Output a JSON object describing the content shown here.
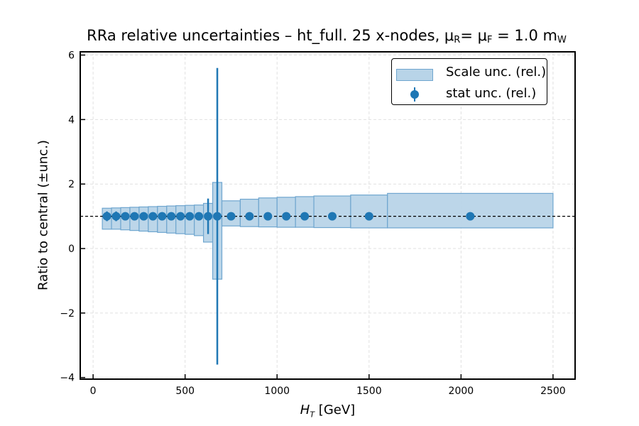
{
  "chart_data": {
    "type": "scatter",
    "title": "RRa relative uncertainties  –  ht_full. 25 x-nodes, μ",
    "title_parts": {
      "mu_r_sub": "R",
      "mid": "= μ",
      "mu_f_sub": "F",
      "tail": " = 1.0 m",
      "w_sub": "W"
    },
    "xlabel": {
      "var": "H",
      "sub": "T",
      "unit": " [GeV]"
    },
    "ylabel": "Ratio to central (±unc.)",
    "xlim": [
      -70,
      2620
    ],
    "ylim": [
      -4.05,
      6.1
    ],
    "xticks": [
      0,
      500,
      1000,
      1500,
      2000,
      2500
    ],
    "yticks": [
      -4,
      -2,
      0,
      2,
      4,
      6
    ],
    "ytick_labels": [
      "−4",
      "−2",
      "0",
      "2",
      "4",
      "6"
    ],
    "grid": true,
    "reference_line": 1.0,
    "legend": {
      "placement": "top-right",
      "entries": [
        "Scale unc. (rel.)",
        "stat unc. (rel.)"
      ]
    },
    "colors": {
      "band_fill": "#b8d4e8",
      "band_edge": "#6fa6cf",
      "point": "#1f77b4",
      "grid": "#e0e0e0"
    },
    "series": [
      {
        "name": "Scale unc. (rel.)",
        "kind": "band",
        "bins": [
          {
            "x0": 50,
            "x1": 100,
            "lo": 0.6,
            "hi": 1.25
          },
          {
            "x0": 100,
            "x1": 150,
            "lo": 0.6,
            "hi": 1.26
          },
          {
            "x0": 150,
            "x1": 200,
            "lo": 0.58,
            "hi": 1.27
          },
          {
            "x0": 200,
            "x1": 250,
            "lo": 0.56,
            "hi": 1.28
          },
          {
            "x0": 250,
            "x1": 300,
            "lo": 0.54,
            "hi": 1.29
          },
          {
            "x0": 300,
            "x1": 350,
            "lo": 0.52,
            "hi": 1.3
          },
          {
            "x0": 350,
            "x1": 400,
            "lo": 0.5,
            "hi": 1.31
          },
          {
            "x0": 400,
            "x1": 450,
            "lo": 0.48,
            "hi": 1.32
          },
          {
            "x0": 450,
            "x1": 500,
            "lo": 0.46,
            "hi": 1.33
          },
          {
            "x0": 500,
            "x1": 550,
            "lo": 0.44,
            "hi": 1.34
          },
          {
            "x0": 550,
            "x1": 600,
            "lo": 0.4,
            "hi": 1.35
          },
          {
            "x0": 600,
            "x1": 650,
            "lo": 0.2,
            "hi": 1.4
          },
          {
            "x0": 650,
            "x1": 700,
            "lo": -0.95,
            "hi": 2.05
          },
          {
            "x0": 700,
            "x1": 800,
            "lo": 0.7,
            "hi": 1.48
          },
          {
            "x0": 800,
            "x1": 900,
            "lo": 0.68,
            "hi": 1.53
          },
          {
            "x0": 900,
            "x1": 1000,
            "lo": 0.67,
            "hi": 1.57
          },
          {
            "x0": 1000,
            "x1": 1100,
            "lo": 0.66,
            "hi": 1.59
          },
          {
            "x0": 1100,
            "x1": 1200,
            "lo": 0.66,
            "hi": 1.61
          },
          {
            "x0": 1200,
            "x1": 1400,
            "lo": 0.65,
            "hi": 1.63
          },
          {
            "x0": 1400,
            "x1": 1600,
            "lo": 0.64,
            "hi": 1.66
          },
          {
            "x0": 1600,
            "x1": 2500,
            "lo": 0.64,
            "hi": 1.71
          }
        ]
      },
      {
        "name": "stat unc. (rel.)",
        "kind": "errorbar",
        "points": [
          {
            "x": 75,
            "y": 1.0,
            "err": 0.15
          },
          {
            "x": 125,
            "y": 1.0,
            "err": 0.15
          },
          {
            "x": 175,
            "y": 1.0,
            "err": 0.08
          },
          {
            "x": 225,
            "y": 1.0,
            "err": 0.08
          },
          {
            "x": 275,
            "y": 1.0,
            "err": 0.05
          },
          {
            "x": 325,
            "y": 1.0,
            "err": 0.05
          },
          {
            "x": 375,
            "y": 1.0,
            "err": 0.05
          },
          {
            "x": 425,
            "y": 1.0,
            "err": 0.05
          },
          {
            "x": 475,
            "y": 1.0,
            "err": 0.05
          },
          {
            "x": 525,
            "y": 1.0,
            "err": 0.05
          },
          {
            "x": 575,
            "y": 1.0,
            "err": 0.05
          },
          {
            "x": 625,
            "y": 1.0,
            "err": 0.55
          },
          {
            "x": 675,
            "y": 1.0,
            "err": 4.6
          },
          {
            "x": 750,
            "y": 1.0,
            "err": 0.1
          },
          {
            "x": 850,
            "y": 1.0,
            "err": 0.05
          },
          {
            "x": 950,
            "y": 1.0,
            "err": 0.05
          },
          {
            "x": 1050,
            "y": 1.0,
            "err": 0.05
          },
          {
            "x": 1150,
            "y": 1.0,
            "err": 0.05
          },
          {
            "x": 1300,
            "y": 1.0,
            "err": 0.05
          },
          {
            "x": 1500,
            "y": 1.0,
            "err": 0.05
          },
          {
            "x": 2050,
            "y": 1.0,
            "err": 0.05
          }
        ]
      }
    ]
  }
}
